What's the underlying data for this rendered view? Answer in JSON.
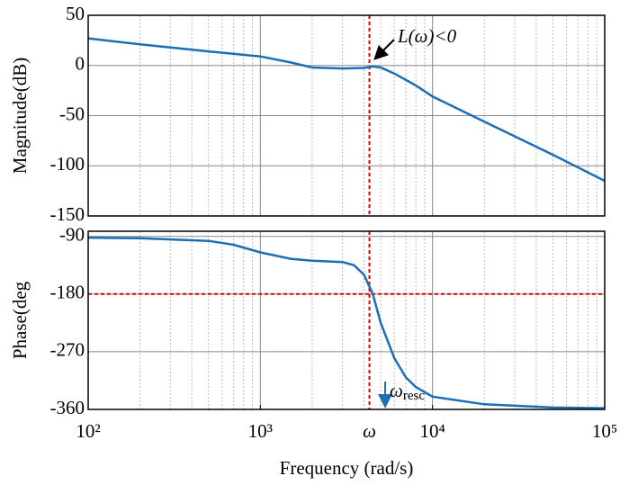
{
  "chart_data": [
    {
      "type": "line",
      "ylabel": "Magnitude(dB)",
      "log_x": true,
      "grid": true,
      "xlim": [
        100,
        100000
      ],
      "ylim": [
        -150,
        50
      ],
      "yticks": [
        50,
        0,
        -50,
        -100,
        -150
      ],
      "series": [
        {
          "color": "#1a6fb5",
          "x": [
            100,
            200,
            500,
            1000,
            1500,
            2000,
            3000,
            4000,
            4500,
            5000,
            6000,
            8000,
            10000,
            20000,
            50000,
            100000
          ],
          "values": [
            27,
            21,
            14,
            9,
            3,
            -2,
            -3,
            -2.5,
            -1,
            -2,
            -8,
            -20,
            -31,
            -56,
            -89,
            -115
          ]
        }
      ],
      "vline": 4300,
      "annotation": "L(ω)<0"
    },
    {
      "type": "line",
      "ylabel": "Phase(deg",
      "xlabel": "Frequency (rad/s)",
      "log_x": true,
      "grid": true,
      "xlim": [
        100,
        100000
      ],
      "ylim": [
        -360,
        -82
      ],
      "xticks": [
        {
          "value": 100,
          "label": "10²"
        },
        {
          "value": 1000,
          "label": "10³"
        },
        {
          "value": 10000,
          "label": "10⁴"
        },
        {
          "value": 100000,
          "label": "10⁵"
        }
      ],
      "yticks": [
        -90,
        -180,
        -270,
        -360
      ],
      "series": [
        {
          "color": "#1a6fb5",
          "x": [
            100,
            200,
            500,
            700,
            1000,
            1500,
            2000,
            3000,
            3500,
            4000,
            4500,
            5000,
            6000,
            7000,
            8000,
            10000,
            20000,
            50000,
            100000
          ],
          "values": [
            -92,
            -93,
            -97,
            -103,
            -115,
            -125,
            -128,
            -130,
            -135,
            -150,
            -180,
            -225,
            -280,
            -310,
            -325,
            -340,
            -352,
            -357,
            -358
          ]
        }
      ],
      "vline": 4300,
      "hline": -180,
      "marker_label": "ω",
      "annotation": {
        "text": "ω",
        "subscript": "resc"
      }
    }
  ]
}
